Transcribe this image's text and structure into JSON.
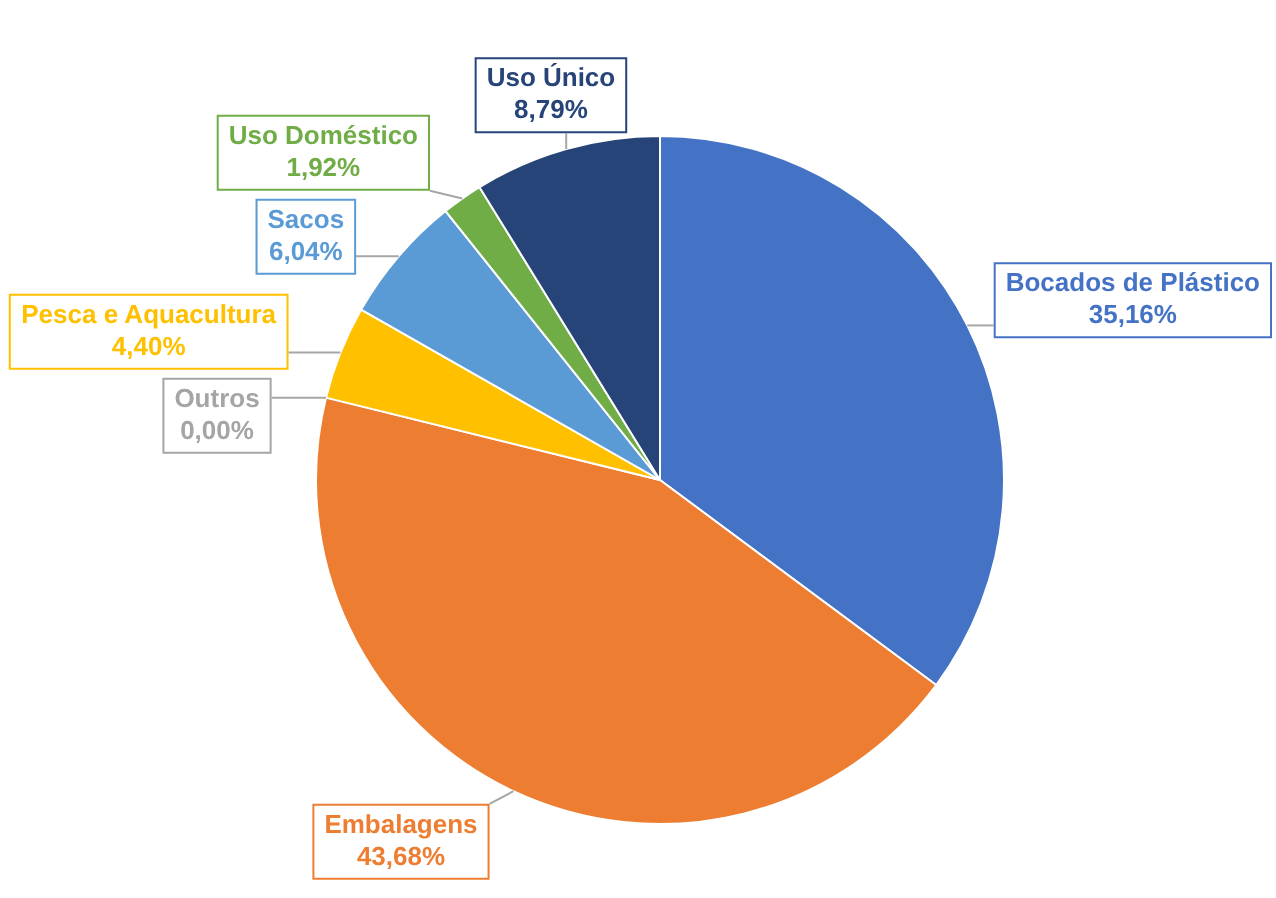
{
  "chart_data": {
    "type": "pie",
    "categories": [
      "Bocados de Plástico",
      "Embalagens",
      "Outros",
      "Pesca e Aquacultura",
      "Sacos",
      "Uso Doméstico",
      "Uso Único"
    ],
    "values": [
      35.16,
      43.68,
      0.0,
      4.4,
      6.04,
      1.92,
      8.79
    ],
    "colors": [
      "#4472c4",
      "#ed7d31",
      "#a5a5a5",
      "#ffc000",
      "#5b9bd5",
      "#70ad47",
      "#264478"
    ],
    "value_labels": [
      "35,16%",
      "43,68%",
      "0,00%",
      "4,40%",
      "6,04%",
      "1,92%",
      "8,79%"
    ]
  }
}
